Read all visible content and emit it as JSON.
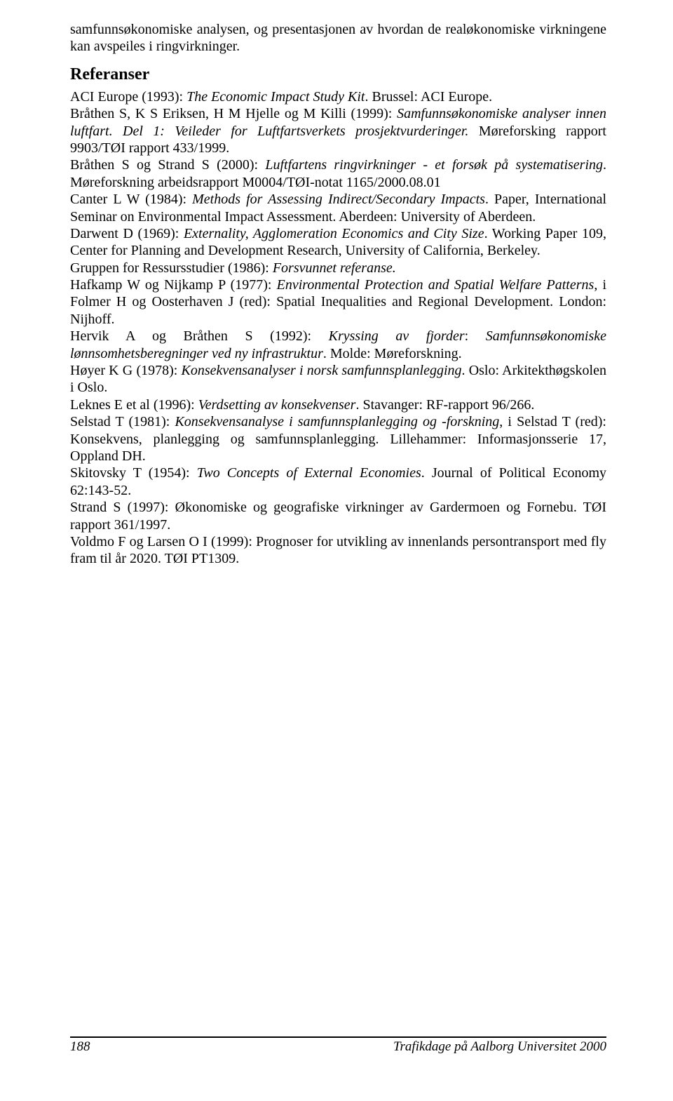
{
  "intro": {
    "p1": "samfunnsøkonomiske analysen, og presentasjonen av hvordan de realøkonomiske virkningene kan avspeiles i ringvirkninger."
  },
  "heading": "Referanser",
  "refs": {
    "r1a": "ACI Europe (1993): ",
    "r1i": "The Economic Impact Study Kit",
    "r1b": ". Brussel: ACI Europe.",
    "r2a": "Bråthen S, K S Eriksen, H M Hjelle og M Killi (1999): ",
    "r2i": "Samfunnsøkonomiske analyser innen luftfart. Del 1: Veileder for Luftfartsverkets prosjektvurderinger.",
    "r2b": " Møreforsking rapport 9903/TØI rapport 433/1999.",
    "r3a": "Bråthen S og Strand S (2000): ",
    "r3i": "Luftfartens ringvirkninger -  et forsøk på systematisering",
    "r3b": ". Møreforskning arbeidsrapport M0004/TØI-notat 1165/2000.08.01",
    "r4a": "Canter L W (1984): ",
    "r4i": "Methods for Assessing Indirect/Secondary Impacts",
    "r4b": ". Paper, International Seminar on Environmental Impact Assessment. Aberdeen: University of Aberdeen.",
    "r5a": "Darwent D (1969): ",
    "r5i": "Externality, Agglomeration Economics and City Size",
    "r5b": ". Working Paper 109, Center for Planning and Development Research, University of California, Berkeley.",
    "r6a": "Gruppen for Ressursstudier (1986): ",
    "r6i": "Forsvunnet referanse.",
    "r7a": "Hafkamp W og Nijkamp P (1977): ",
    "r7i": "Environmental Protection and Spatial Welfare Patterns",
    "r7b": ", i Folmer H og Oosterhaven J (red): Spatial Inequalities and Regional Development. London: Nijhoff.",
    "r8a": "Hervik A og Bråthen S (1992): ",
    "r8i": "Kryssing av fjorder",
    "r8b": ": ",
    "r8i2": "Samfunnsøkonomiske lønnsomhetsberegninger ved ny infrastruktur",
    "r8c": ". Molde: Møreforskning.",
    "r9a": "Høyer K G (1978): ",
    "r9i": "Konsekvensanalyser i norsk samfunnsplanlegging",
    "r9b": ". Oslo: Arkitekthøgskolen i Oslo.",
    "r10a": "Leknes E et al (1996): ",
    "r10i": "Verdsetting av konsekvenser",
    "r10b": ". Stavanger: RF-rapport 96/266.",
    "r11a": "Selstad T (1981): ",
    "r11i": "Konsekvensanalyse i samfunnsplanlegging og -forskning",
    "r11b": ", i Selstad T (red): Konsekvens, planlegging og samfunnsplanlegging. Lillehammer: Informasjonsserie 17, Oppland DH.",
    "r12a": "Skitovsky T (1954): ",
    "r12i": "Two Concepts of External Economies",
    "r12b": ". Journal of Political Economy 62:143-52.",
    "r13a": "Strand S (1997): Økonomiske og geografiske virkninger av Gardermoen og Fornebu. TØI rapport 361/1997.",
    "r14a": "Voldmo F og Larsen O I (1999): Prognoser for utvikling av innenlands persontransport med fly fram til år 2020. TØI PT1309."
  },
  "footer": {
    "page": "188",
    "text": "Trafikdage på Aalborg Universitet 2000"
  }
}
